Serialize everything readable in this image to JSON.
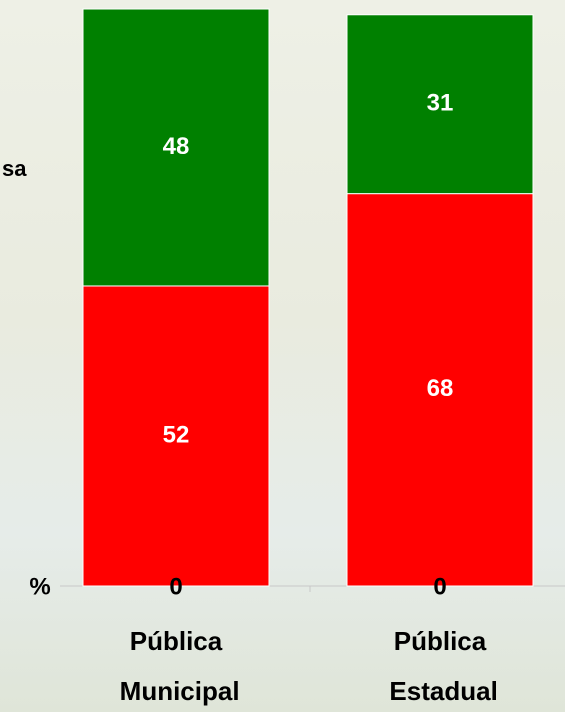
{
  "chart_data": {
    "type": "stacked_bar",
    "categories": [
      "Pública Municipal",
      "Pública Estadual"
    ],
    "series": [
      {
        "color": "#ff0000",
        "values": [
          52,
          68
        ]
      },
      {
        "color": "#008000",
        "values": [
          48,
          31
        ]
      },
      {
        "color": "#000000",
        "values": [
          0,
          0
        ]
      }
    ],
    "ylabel": "%",
    "annotations": [
      "sa"
    ],
    "ylim": [
      0,
      100
    ]
  }
}
